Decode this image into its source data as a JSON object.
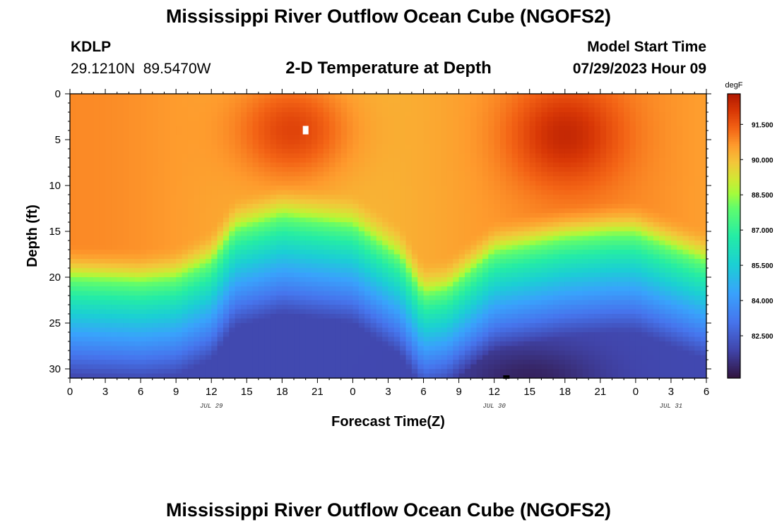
{
  "title": "Mississippi River Outflow Ocean Cube (NGOFS2)",
  "station": {
    "id": "KDLP",
    "coords": "29.1210N  89.5470W"
  },
  "subtitle": "2-D Temperature at Depth",
  "model": {
    "label": "Model Start Time",
    "value": "07/29/2023 Hour 09"
  },
  "chart_data": {
    "type": "heatmap",
    "title": "2-D Temperature at Depth",
    "xlabel": "Forecast Time(Z)",
    "ylabel": "Depth (ft)",
    "x_tick_labels": [
      "0",
      "3",
      "6",
      "9",
      "12",
      "15",
      "18",
      "21",
      "0",
      "3",
      "6",
      "9",
      "12",
      "15",
      "18",
      "21",
      "0",
      "3",
      "6"
    ],
    "x_range_hours": [
      0,
      54
    ],
    "y_ticks": [
      0,
      5,
      10,
      15,
      20,
      25,
      30
    ],
    "y_range": [
      0,
      31
    ],
    "y_inverted": true,
    "date_labels": [
      {
        "text": "JUL 29",
        "hour": 12
      },
      {
        "text": "JUL 30",
        "hour": 36
      },
      {
        "text": "JUL 31",
        "hour": 51
      }
    ],
    "colorbar": {
      "unit": "degF",
      "range": [
        80.7,
        92.8
      ],
      "ticks": [
        "82.500",
        "84.000",
        "85.500",
        "87.000",
        "88.500",
        "90.000",
        "91.500"
      ]
    },
    "thermocline_depth_ft": [
      [
        0,
        19.8
      ],
      [
        6,
        20.2
      ],
      [
        9,
        19.8
      ],
      [
        12,
        18.0
      ],
      [
        14,
        14.5
      ],
      [
        18,
        13.0
      ],
      [
        24,
        14.0
      ],
      [
        28,
        17.5
      ],
      [
        30,
        21.5
      ],
      [
        32,
        21.0
      ],
      [
        36,
        17.0
      ],
      [
        42,
        15.5
      ],
      [
        46,
        15.0
      ],
      [
        48,
        15.0
      ],
      [
        54,
        18.0
      ]
    ],
    "surface_hot_spots": [
      {
        "hour": 19,
        "depth_ft": 4,
        "peak_degF": 92.3
      },
      {
        "hour": 42,
        "depth_ft": 4.5,
        "peak_degF": 92.2
      }
    ],
    "bottom_cold_core": {
      "hour_range": [
        33,
        45
      ],
      "peak_degF": 81.3
    }
  }
}
